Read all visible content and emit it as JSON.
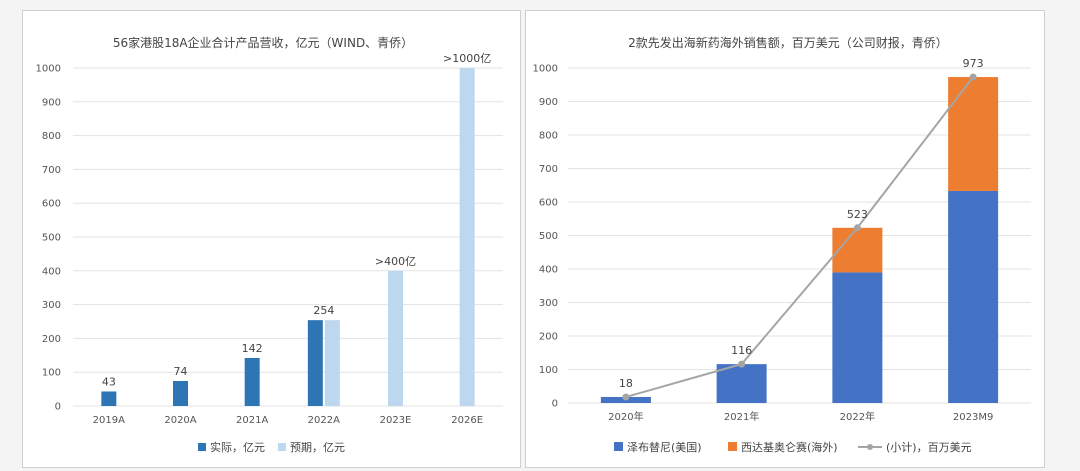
{
  "chart_data": [
    {
      "type": "bar",
      "title": "56家港股18A企业合计产品营收，亿元（WIND、青侨）",
      "categories": [
        "2019A",
        "2020A",
        "2021A",
        "2022A",
        "2023E",
        "2026E"
      ],
      "series": [
        {
          "name": "实际，亿元",
          "values": [
            43,
            74,
            142,
            254,
            null,
            null
          ]
        },
        {
          "name": "预期，亿元",
          "values": [
            null,
            null,
            null,
            254,
            400,
            1000
          ]
        }
      ],
      "data_labels": [
        "43",
        "74",
        "142",
        "254",
        ">400亿",
        ">1000亿"
      ],
      "ylim": [
        0,
        1000
      ],
      "yticks": [
        "0",
        "100",
        "200",
        "300",
        "400",
        "500",
        "600",
        "700",
        "800",
        "900",
        "1000"
      ],
      "grid": true,
      "legend": "bottom"
    },
    {
      "type": "bar",
      "stacked": true,
      "title": "2款先发出海新药海外销售额，百万美元（公司财报，青侨）",
      "categories": [
        "2020年",
        "2021年",
        "2022年",
        "2023M9"
      ],
      "series": [
        {
          "name": "泽布替尼(美国)",
          "values": [
            18,
            116,
            390,
            633
          ]
        },
        {
          "name": "西达基奥仑赛(海外)",
          "values": [
            0,
            0,
            133,
            340
          ]
        }
      ],
      "line": {
        "name": "(小计)，百万美元",
        "values": [
          18,
          116,
          523,
          973
        ]
      },
      "data_labels": [
        "18",
        "116",
        "523",
        "973"
      ],
      "ylim": [
        0,
        1000
      ],
      "yticks": [
        "0",
        "100",
        "200",
        "300",
        "400",
        "500",
        "600",
        "700",
        "800",
        "900",
        "1000"
      ],
      "grid": true,
      "legend": "bottom"
    }
  ],
  "colors": {
    "actual": "#2e75b6",
    "forecast": "#bdd7ee",
    "blue": "#4472c4",
    "orange": "#ed7d31",
    "line": "#a5a5a5"
  }
}
